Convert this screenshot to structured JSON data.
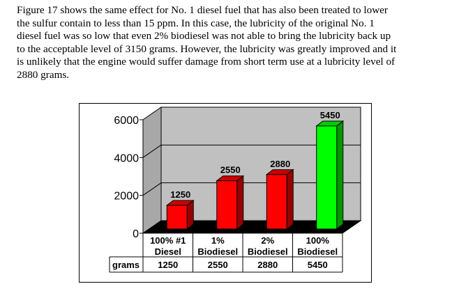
{
  "paragraph": {
    "lines": [
      "Figure 17 shows the same effect for No. 1 diesel fuel that has also been treated to lower",
      "the sulfur contain to less than 15 ppm. In this case, the lubricity of the original No. 1",
      "diesel fuel was so low that even 2% biodiesel was not able to bring the lubricity back up",
      "to the acceptable level of 3150 grams. However, the lubricity was greatly improved and it",
      "is unlikely that the engine would suffer damage from short term use at a lubricity level of",
      "2880 grams."
    ]
  },
  "chart_data": {
    "type": "bar",
    "categories": [
      [
        "100% #1",
        "Diesel"
      ],
      [
        "1%",
        "Biodiesel"
      ],
      [
        "2%",
        "Biodiesel"
      ],
      [
        "100%",
        "Biodiesel"
      ]
    ],
    "series": [
      {
        "name": "grams",
        "values": [
          1250,
          2550,
          2880,
          5450
        ]
      }
    ],
    "data_labels": [
      "1250",
      "2550",
      "2880",
      "5450"
    ],
    "y_ticks": [
      "0",
      "2000",
      "4000",
      "6000"
    ],
    "ylim": [
      0,
      6000
    ],
    "grid": true,
    "style": "3d",
    "bar_colors": [
      "#ff0000",
      "#ff0000",
      "#ff0000",
      "#00ff00"
    ],
    "wall_color": "#c0c0c0",
    "floor_color": "#000000",
    "data_table": {
      "row_label": "grams",
      "values": [
        "1250",
        "2550",
        "2880",
        "5450"
      ]
    }
  }
}
